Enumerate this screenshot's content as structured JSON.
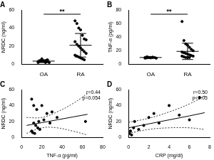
{
  "chart_data": [
    {
      "type": "scatter",
      "title": "A",
      "y_label": "NRDC (ng/ml)",
      "categories": [
        "OA",
        "RA"
      ],
      "values": [
        [
          2,
          3,
          3,
          4,
          4,
          5,
          2,
          3,
          4,
          6,
          3,
          2,
          3
        ],
        [
          48,
          45,
          40,
          38,
          32,
          28,
          27,
          25,
          22,
          20,
          18,
          16,
          14,
          12,
          10,
          9,
          8,
          7,
          6,
          5
        ]
      ],
      "mean": [
        3.5,
        21
      ],
      "sd": [
        1.3,
        13
      ],
      "annotations": [
        "**"
      ],
      "color": "#000000",
      "marker": "circle",
      "grid": false,
      "ylim": [
        0,
        60
      ],
      "yticks": [
        0,
        20,
        40,
        60
      ]
    },
    {
      "type": "scatter",
      "title": "B",
      "y_label": "TNF-α (pg/ml)",
      "categories": [
        "OA",
        "RA"
      ],
      "values": [
        [
          9,
          9.5,
          10,
          10,
          10.5,
          10,
          9,
          10,
          11,
          10,
          9.5,
          10
        ],
        [
          63,
          35,
          30,
          28,
          25,
          22,
          20,
          18,
          17,
          16,
          15,
          14,
          13,
          12,
          12,
          11,
          10,
          10,
          10
        ]
      ],
      "mean": [
        10,
        19
      ],
      "sd": [
        0.6,
        12
      ],
      "annotations": [
        "**"
      ],
      "color": "#000000",
      "marker": "circle",
      "grid": false,
      "ylim": [
        0,
        80
      ],
      "yticks": [
        0,
        20,
        40,
        60,
        80
      ]
    },
    {
      "type": "scatter",
      "title": "C",
      "x_label": "TNF-α (pg/ml)",
      "y_label": "NRDC (ng/ml)",
      "x": [
        10,
        12,
        15,
        20,
        25,
        30,
        12,
        14,
        16,
        18,
        10,
        11,
        13,
        17,
        22,
        28,
        35,
        63
      ],
      "values": [
        48,
        40,
        35,
        40,
        30,
        32,
        18,
        15,
        12,
        10,
        8,
        6,
        5,
        20,
        22,
        18,
        25,
        20
      ],
      "fit": {
        "x": [
          5,
          20,
          35,
          50,
          65
        ],
        "y": [
          15,
          18.5,
          22,
          25.5,
          29
        ],
        "lower": [
          5,
          12,
          12,
          8,
          3
        ],
        "upper": [
          25,
          25,
          32,
          42,
          55
        ]
      },
      "annotations": [
        "r=0.44",
        "p=0.054"
      ],
      "color": "#000000",
      "marker": "circle",
      "grid": false,
      "xlim": [
        0,
        80
      ],
      "xticks": [
        0,
        20,
        40,
        60,
        80
      ],
      "ylim": [
        0,
        60
      ],
      "yticks": [
        0,
        20,
        40,
        60
      ]
    },
    {
      "type": "scatter",
      "title": "D",
      "x_label": "CRP (mg/dl)",
      "y_label": "NRDC (ng/ml)",
      "x": [
        0.1,
        0.2,
        0.3,
        0.5,
        0.6,
        1,
        1.5,
        2,
        2.5,
        3,
        4,
        5,
        6,
        7
      ],
      "values": [
        5,
        8,
        3,
        12,
        20,
        10,
        15,
        25,
        30,
        18,
        40,
        28,
        22,
        50
      ],
      "fit": {
        "x": [
          0,
          2,
          4,
          6,
          7.5
        ],
        "y": [
          12,
          17,
          22,
          27,
          31
        ],
        "lower": [
          5,
          10,
          12,
          12,
          10
        ],
        "upper": [
          19,
          24,
          32,
          42,
          52
        ]
      },
      "annotations": [
        "r=0.50",
        "p<0.05"
      ],
      "color": "#000000",
      "marker": "circle",
      "grid": false,
      "xlim": [
        0,
        8
      ],
      "xticks": [
        0,
        2,
        4,
        6,
        8
      ],
      "ylim": [
        0,
        60
      ],
      "yticks": [
        0,
        20,
        40,
        60
      ]
    }
  ]
}
